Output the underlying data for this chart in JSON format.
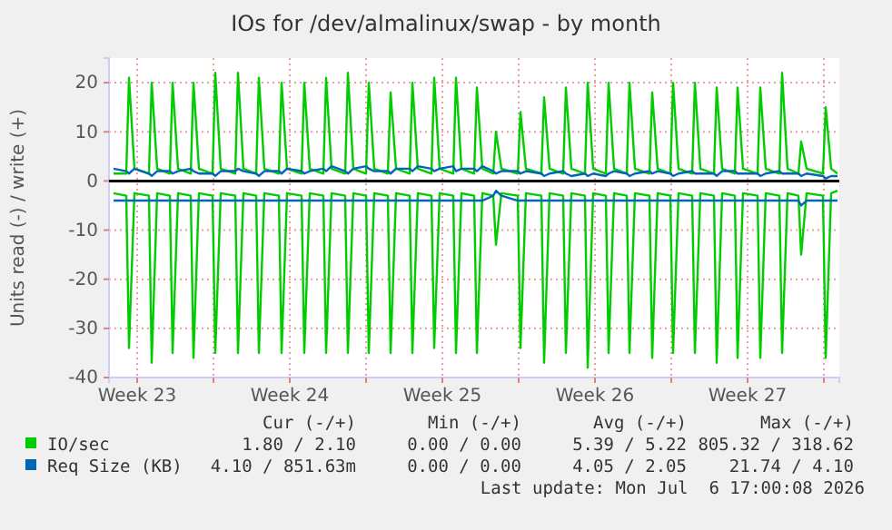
{
  "chart_data": {
    "type": "line",
    "title": "IOs for /dev/almalinux/swap - by month",
    "ylabel": "Units read (-) / write (+)",
    "xlim": [
      "2026-06-03T05:00",
      "2026-07-06T17:00"
    ],
    "xticks": [
      {
        "value": "2026-06-04T12:00",
        "label": "Week 23"
      },
      {
        "value": "2026-06-08",
        "label": null
      },
      {
        "value": "2026-06-11T12:00",
        "label": "Week 24"
      },
      {
        "value": "2026-06-15",
        "label": null
      },
      {
        "value": "2026-06-18T12:00",
        "label": "Week 25"
      },
      {
        "value": "2026-06-22",
        "label": null
      },
      {
        "value": "2026-06-25T12:00",
        "label": "Week 26"
      },
      {
        "value": "2026-06-29",
        "label": null
      },
      {
        "value": "2026-07-02T12:00",
        "label": "Week 27"
      },
      {
        "value": "2026-07-06",
        "label": null
      }
    ],
    "ylim": [
      -40,
      25
    ],
    "yticks": [
      -40,
      -30,
      -20,
      -10,
      0,
      10,
      20
    ],
    "grid": true,
    "legend": "bottom",
    "ref_lines": [
      {
        "axis": "y",
        "value": 0,
        "color": "#000000"
      }
    ],
    "x": [
      "2026-06-03T10:00",
      "2026-06-04T00:00",
      "2026-06-04T03:00",
      "2026-06-04T09:00",
      "2026-06-05T01:00",
      "2026-06-05T04:00",
      "2026-06-05T10:00",
      "2026-06-06T00:00",
      "2026-06-06T03:00",
      "2026-06-06T09:00",
      "2026-06-06T23:00",
      "2026-06-07T02:00",
      "2026-06-07T08:00",
      "2026-06-07T23:00",
      "2026-06-08T02:00",
      "2026-06-08T08:00",
      "2026-06-09T00:00",
      "2026-06-09T03:00",
      "2026-06-09T09:00",
      "2026-06-09T23:00",
      "2026-06-10T02:00",
      "2026-06-10T08:00",
      "2026-06-11T00:00",
      "2026-06-11T03:00",
      "2026-06-11T09:00",
      "2026-06-12T01:00",
      "2026-06-12T04:00",
      "2026-06-12T10:00",
      "2026-06-13T01:00",
      "2026-06-13T04:00",
      "2026-06-13T10:00",
      "2026-06-14T01:00",
      "2026-06-14T04:00",
      "2026-06-14T10:00",
      "2026-06-15T00:00",
      "2026-06-15T03:00",
      "2026-06-15T09:00",
      "2026-06-16T00:00",
      "2026-06-16T03:00",
      "2026-06-16T09:00",
      "2026-06-17T00:00",
      "2026-06-17T03:00",
      "2026-06-17T09:00",
      "2026-06-18T00:00",
      "2026-06-18T03:00",
      "2026-06-18T09:00",
      "2026-06-19T00:00",
      "2026-06-19T03:00",
      "2026-06-19T09:00",
      "2026-06-19T23:00",
      "2026-06-20T02:00",
      "2026-06-20T08:00",
      "2026-06-20T20:00",
      "2026-06-20T23:00",
      "2026-06-21T05:00",
      "2026-06-21T23:00",
      "2026-06-22T02:00",
      "2026-06-22T08:00",
      "2026-06-23T01:00",
      "2026-06-23T04:00",
      "2026-06-23T10:00",
      "2026-06-24T01:00",
      "2026-06-24T04:00",
      "2026-06-24T10:00",
      "2026-06-25T01:00",
      "2026-06-25T04:00",
      "2026-06-25T10:00",
      "2026-06-26T00:00",
      "2026-06-26T03:00",
      "2026-06-26T09:00",
      "2026-06-26T23:00",
      "2026-06-27T02:00",
      "2026-06-27T08:00",
      "2026-06-28T00:00",
      "2026-06-28T03:00",
      "2026-06-28T09:00",
      "2026-06-28T23:00",
      "2026-06-29T02:00",
      "2026-06-29T08:00",
      "2026-06-29T23:00",
      "2026-06-30T02:00",
      "2026-06-30T08:00",
      "2026-06-30T23:00",
      "2026-07-01T02:00",
      "2026-07-01T08:00",
      "2026-07-01T22:00",
      "2026-07-02T01:00",
      "2026-07-02T07:00",
      "2026-07-02T23:00",
      "2026-07-03T02:00",
      "2026-07-03T08:00",
      "2026-07-03T23:00",
      "2026-07-04T02:00",
      "2026-07-04T08:00",
      "2026-07-04T20:00",
      "2026-07-04T23:00",
      "2026-07-05T05:00",
      "2026-07-05T23:00",
      "2026-07-06T02:00",
      "2026-07-06T08:00",
      "2026-07-06T15:00"
    ],
    "series": [
      {
        "name": "IO/sec",
        "color": "#00cc00",
        "values": [
          1.5,
          1.5,
          21,
          2.5,
          1.5,
          20,
          2.5,
          1.5,
          20,
          2.5,
          1.5,
          20,
          2.5,
          1.5,
          22,
          2.5,
          1.5,
          22,
          2.5,
          1.5,
          21,
          2.5,
          1.5,
          20,
          2.5,
          1.5,
          20,
          2.5,
          1.5,
          21,
          2.5,
          1.5,
          22,
          2.5,
          1.5,
          20,
          2.5,
          1.5,
          18,
          2.5,
          1.5,
          20,
          2.5,
          1.5,
          21,
          2.5,
          1.5,
          21,
          2.5,
          1.5,
          19,
          2.5,
          1.5,
          10,
          2.5,
          1.5,
          14,
          2.5,
          1.5,
          17,
          2.5,
          1.5,
          19,
          2.5,
          1.5,
          20,
          2.5,
          1.5,
          20,
          2.5,
          1.5,
          20,
          2.5,
          1.5,
          18,
          2.5,
          1.5,
          20,
          2.5,
          1.5,
          20,
          2.5,
          1.5,
          19,
          2.5,
          1.5,
          19,
          2.5,
          1.5,
          19,
          2.5,
          1.5,
          22,
          2.5,
          1.5,
          8,
          2.5,
          1.5,
          15,
          2.5,
          1.5
        ]
      },
      {
        "color": "#00cc00",
        "values": [
          -2.5,
          -3,
          -34,
          -2.5,
          -3,
          -37,
          -2.5,
          -3,
          -35,
          -2.5,
          -3,
          -36,
          -2.5,
          -3,
          -35,
          -2.5,
          -3,
          -35,
          -2.5,
          -3,
          -35,
          -2.5,
          -3,
          -35,
          -2.5,
          -3,
          -35,
          -2.5,
          -3,
          -35,
          -2.5,
          -3,
          -35,
          -2.5,
          -3,
          -35,
          -2.5,
          -3,
          -35,
          -2.5,
          -3,
          -35,
          -2.5,
          -3,
          -34,
          -2.5,
          -3,
          -35,
          -2.5,
          -3,
          -35,
          -2.5,
          -3,
          -13,
          -2.5,
          -3,
          -34,
          -2.5,
          -3,
          -37,
          -2.5,
          -3,
          -35,
          -2.5,
          -3,
          -38,
          -2.5,
          -3,
          -35,
          -2.5,
          -3,
          -35,
          -2.5,
          -3,
          -36,
          -2.5,
          -3,
          -35,
          -2.5,
          -3,
          -35,
          -2.5,
          -3,
          -37,
          -2.5,
          -3,
          -36,
          -2.5,
          -3,
          -36,
          -2.5,
          -3,
          -35,
          -2.5,
          -3,
          -15,
          -2.5,
          -3,
          -36,
          -2.5,
          -2
        ]
      },
      {
        "name": "Req Size (KB)",
        "color": "#0066b3",
        "values": [
          2.5,
          2,
          1.5,
          2.5,
          1.5,
          1,
          2,
          2,
          1.5,
          2,
          2.5,
          2,
          1.5,
          1.5,
          1,
          2,
          2,
          2.5,
          2,
          1.5,
          1,
          2,
          2,
          1.5,
          2.5,
          2,
          1.5,
          2,
          2.5,
          2,
          3,
          2,
          1.5,
          2.5,
          3,
          2.5,
          2,
          2,
          1.5,
          2.5,
          2.5,
          2,
          3,
          2.5,
          2,
          2.5,
          3,
          2,
          2.5,
          2.5,
          2,
          3,
          2,
          1.5,
          2,
          2,
          1.5,
          2,
          1.5,
          1,
          1.5,
          2,
          1.5,
          1,
          1.5,
          1,
          1.5,
          1,
          1.5,
          2,
          1.5,
          1,
          1.5,
          2,
          1.5,
          2,
          1.5,
          1,
          1.5,
          2,
          1.5,
          1.5,
          1.5,
          1,
          2,
          2,
          1.5,
          1.5,
          1.5,
          1,
          1.5,
          2,
          1.5,
          1.5,
          1.5,
          1,
          1.5,
          1,
          0.5,
          1,
          1
        ]
      },
      {
        "color": "#0066b3",
        "values": [
          -4,
          -4,
          -4,
          -4,
          -4,
          -4,
          -4,
          -4,
          -4,
          -4,
          -4,
          -4,
          -4,
          -4,
          -4,
          -4,
          -4,
          -4,
          -4,
          -4,
          -4,
          -4,
          -4,
          -4,
          -4,
          -4,
          -4,
          -4,
          -4,
          -4,
          -4,
          -4,
          -4,
          -4,
          -4,
          -4,
          -4,
          -4,
          -4,
          -4,
          -4,
          -4,
          -4,
          -4,
          -4,
          -4,
          -4,
          -4,
          -4,
          -4,
          -4,
          -4,
          -3,
          -2,
          -3,
          -4,
          -4,
          -4,
          -4,
          -4,
          -4,
          -4,
          -4,
          -4,
          -4,
          -4,
          -4,
          -4,
          -4,
          -4,
          -4,
          -4,
          -4,
          -4,
          -4,
          -4,
          -4,
          -4,
          -4,
          -4,
          -4,
          -4,
          -4,
          -4,
          -4,
          -4,
          -4,
          -4,
          -4,
          -4,
          -4,
          -4,
          -4,
          -4,
          -4,
          -5,
          -4,
          -4,
          -4,
          -4,
          -4
        ]
      }
    ],
    "annotations": [
      "Cur (-/+)",
      "Min (-/+)",
      "Avg (-/+)",
      "Max (-/+)",
      "1.80 / 2.10",
      "0.00 / 0.00",
      "5.39 / 5.22",
      "805.32 / 318.62",
      "4.10 / 851.63m",
      "0.00 / 0.00",
      "4.05 / 2.05",
      "21.74 / 4.10",
      "Last update: Mon Jul  6 17:00:08 2026"
    ]
  }
}
